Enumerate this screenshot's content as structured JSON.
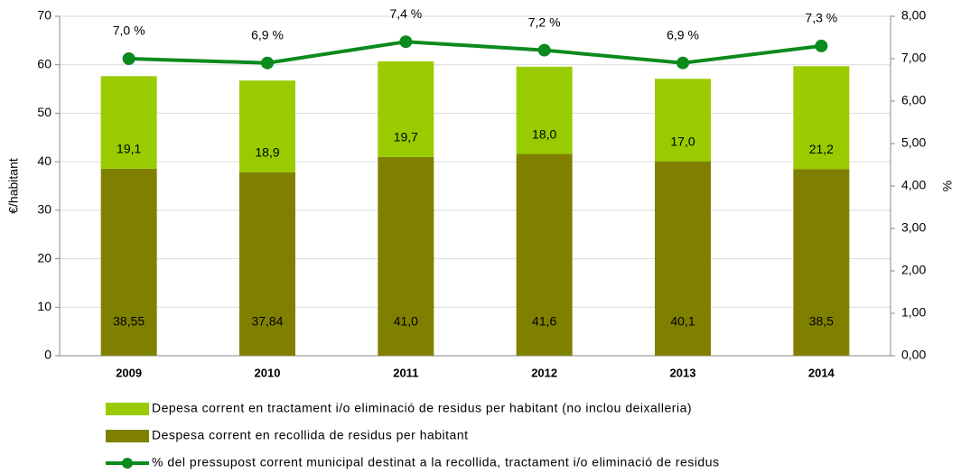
{
  "chart_data": {
    "type": "bar",
    "stacked": true,
    "categories": [
      "2009",
      "2010",
      "2011",
      "2012",
      "2013",
      "2014"
    ],
    "series": [
      {
        "name": "Depesa corrent en tractament i/o eliminació de residus per habitant (no inclou deixalleria)",
        "color": "#99cc00",
        "values": [
          19.1,
          18.9,
          19.7,
          18.0,
          17.0,
          21.2
        ],
        "value_labels": [
          "19,1",
          "18,9",
          "19,7",
          "18,0",
          "17,0",
          "21,2"
        ]
      },
      {
        "name": "Despesa corrent en recollida de residus per habitant",
        "color": "#808000",
        "values": [
          38.55,
          37.84,
          41.0,
          41.6,
          40.1,
          38.5
        ],
        "value_labels": [
          "38,55",
          "37,84",
          "41,0",
          "41,6",
          "40,1",
          "38,5"
        ]
      },
      {
        "name": "% del pressupost corrent municipal destinat a la recollida, tractament i/o eliminació de residus",
        "color": "#0b8a1e",
        "type": "line",
        "axis": "y2",
        "values": [
          7.0,
          6.9,
          7.4,
          7.2,
          6.9,
          7.3
        ],
        "value_labels": [
          "7,0 %",
          "6,9 %",
          "7,4 %",
          "7,2 %",
          "6,9 %",
          "7,3 %"
        ]
      }
    ],
    "ylabel": "€/habitant",
    "y2label": "%",
    "ylim": [
      0,
      70
    ],
    "yticks": [
      0,
      10,
      20,
      30,
      40,
      50,
      60,
      70
    ],
    "y2lim": [
      0,
      8
    ],
    "y2ticks": [
      {
        "value": 0,
        "label": "0,00"
      },
      {
        "value": 1,
        "label": "1,00"
      },
      {
        "value": 2,
        "label": "2,00"
      },
      {
        "value": 3,
        "label": "3,00"
      },
      {
        "value": 4,
        "label": "4,00"
      },
      {
        "value": 5,
        "label": "5,00"
      },
      {
        "value": 6,
        "label": "6,00"
      },
      {
        "value": 7,
        "label": "7,00"
      },
      {
        "value": 8,
        "label": "8,00"
      }
    ],
    "grid": true,
    "legend": "bottom"
  }
}
